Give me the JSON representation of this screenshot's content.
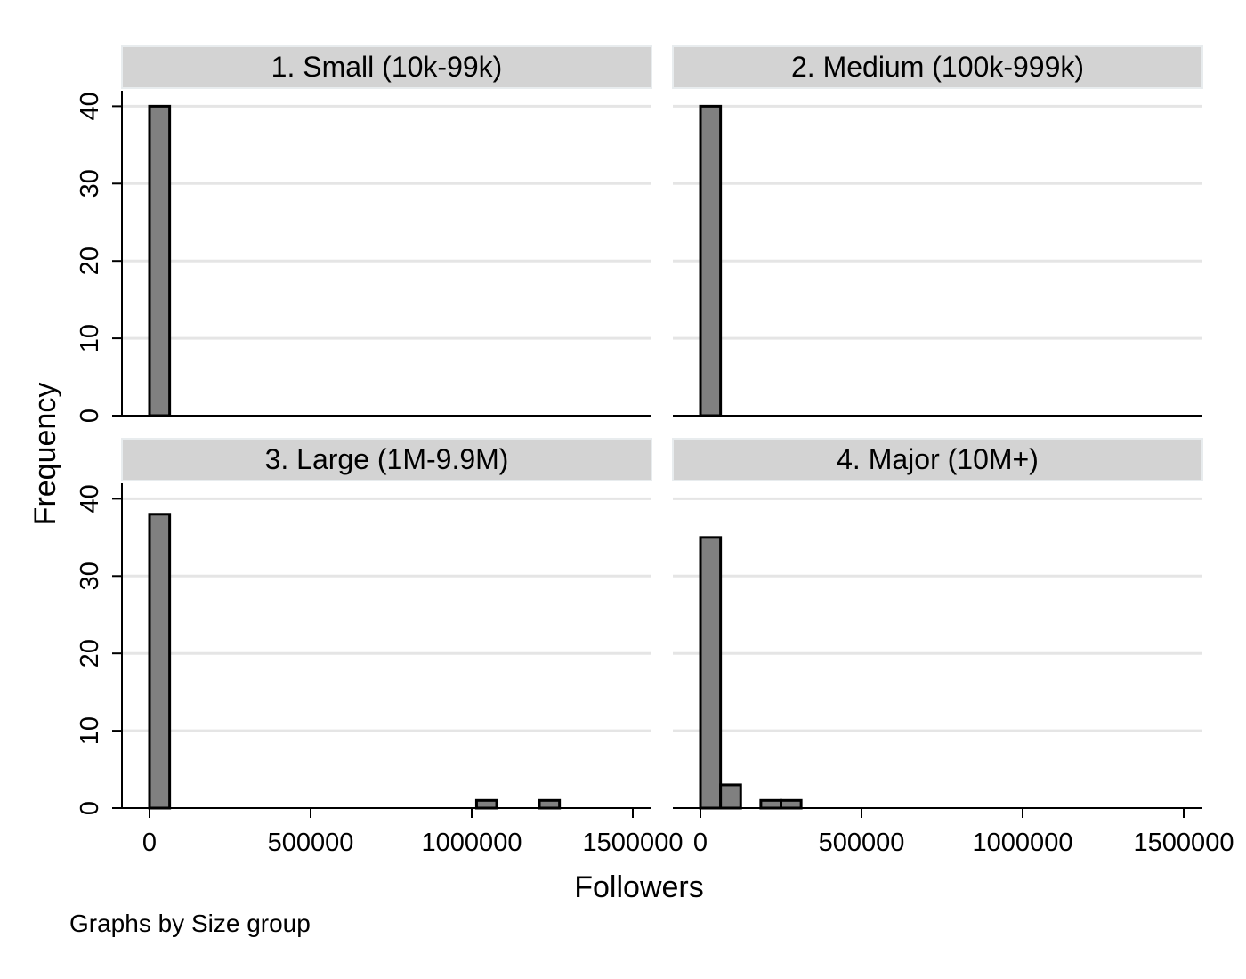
{
  "chart_data": {
    "type": "bar",
    "chart_kind": "histogram",
    "xlabel": "Followers",
    "ylabel": "Frequency",
    "note": "Graphs by Size group",
    "x_ticks": [
      0,
      500000,
      1000000,
      1500000
    ],
    "x_tick_labels": [
      "0",
      "500000",
      "1000000",
      "1500000"
    ],
    "y_ticks": [
      0,
      10,
      20,
      30,
      40
    ],
    "y_tick_labels": [
      "0",
      "10",
      "20",
      "30",
      "40"
    ],
    "xlim": [
      -100000,
      1500000
    ],
    "ylim": [
      0,
      42
    ],
    "bin_width": 62500,
    "grid": true,
    "colors": {
      "bar_fill": "#808080",
      "bar_stroke": "#000000",
      "strip_fill": "#d3d3d3",
      "strip_stroke": "#e8ecee",
      "grid": "#e5e5e5",
      "axis": "#000000",
      "background": "#ffffff"
    },
    "panels": [
      {
        "title": "1. Small (10k-99k)",
        "bins": [
          {
            "x": 0,
            "count": 40
          }
        ]
      },
      {
        "title": "2. Medium (100k-999k)",
        "bins": [
          {
            "x": 0,
            "count": 40
          }
        ]
      },
      {
        "title": "3. Large (1M-9.9M)",
        "bins": [
          {
            "x": 0,
            "count": 38
          },
          {
            "x": 1015000,
            "count": 1
          },
          {
            "x": 1210000,
            "count": 1
          }
        ]
      },
      {
        "title": "4. Major (10M+)",
        "bins": [
          {
            "x": 0,
            "count": 35
          },
          {
            "x": 62500,
            "count": 3
          },
          {
            "x": 187500,
            "count": 1
          },
          {
            "x": 250000,
            "count": 1
          }
        ]
      }
    ]
  }
}
